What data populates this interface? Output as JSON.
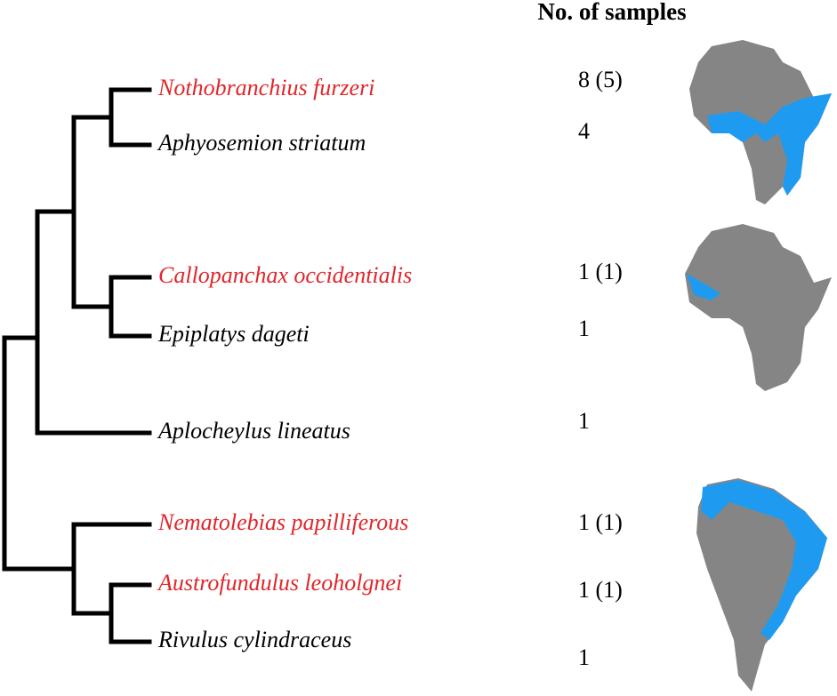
{
  "header": {
    "title": "No. of samples"
  },
  "taxa": [
    {
      "name": "Nothobranchius furzeri",
      "samples": "8 (5)",
      "color": "#e0262b"
    },
    {
      "name": "Aphyosemion striatum",
      "samples": "4",
      "color": "#000000"
    },
    {
      "name": "Callopanchax occidentialis",
      "samples": "1 (1)",
      "color": "#e0262b"
    },
    {
      "name": "Epiplatys dageti",
      "samples": "1",
      "color": "#000000"
    },
    {
      "name": "Aplocheylus lineatus",
      "samples": "1",
      "color": "#000000"
    },
    {
      "name": "Nematolebias papilliferous",
      "samples": "1 (1)",
      "color": "#e0262b"
    },
    {
      "name": "Austrofundulus leoholgnei",
      "samples": "1 (1)",
      "color": "#e0262b"
    },
    {
      "name": "Rivulus cylindraceus",
      "samples": "1",
      "color": "#000000"
    }
  ]
}
